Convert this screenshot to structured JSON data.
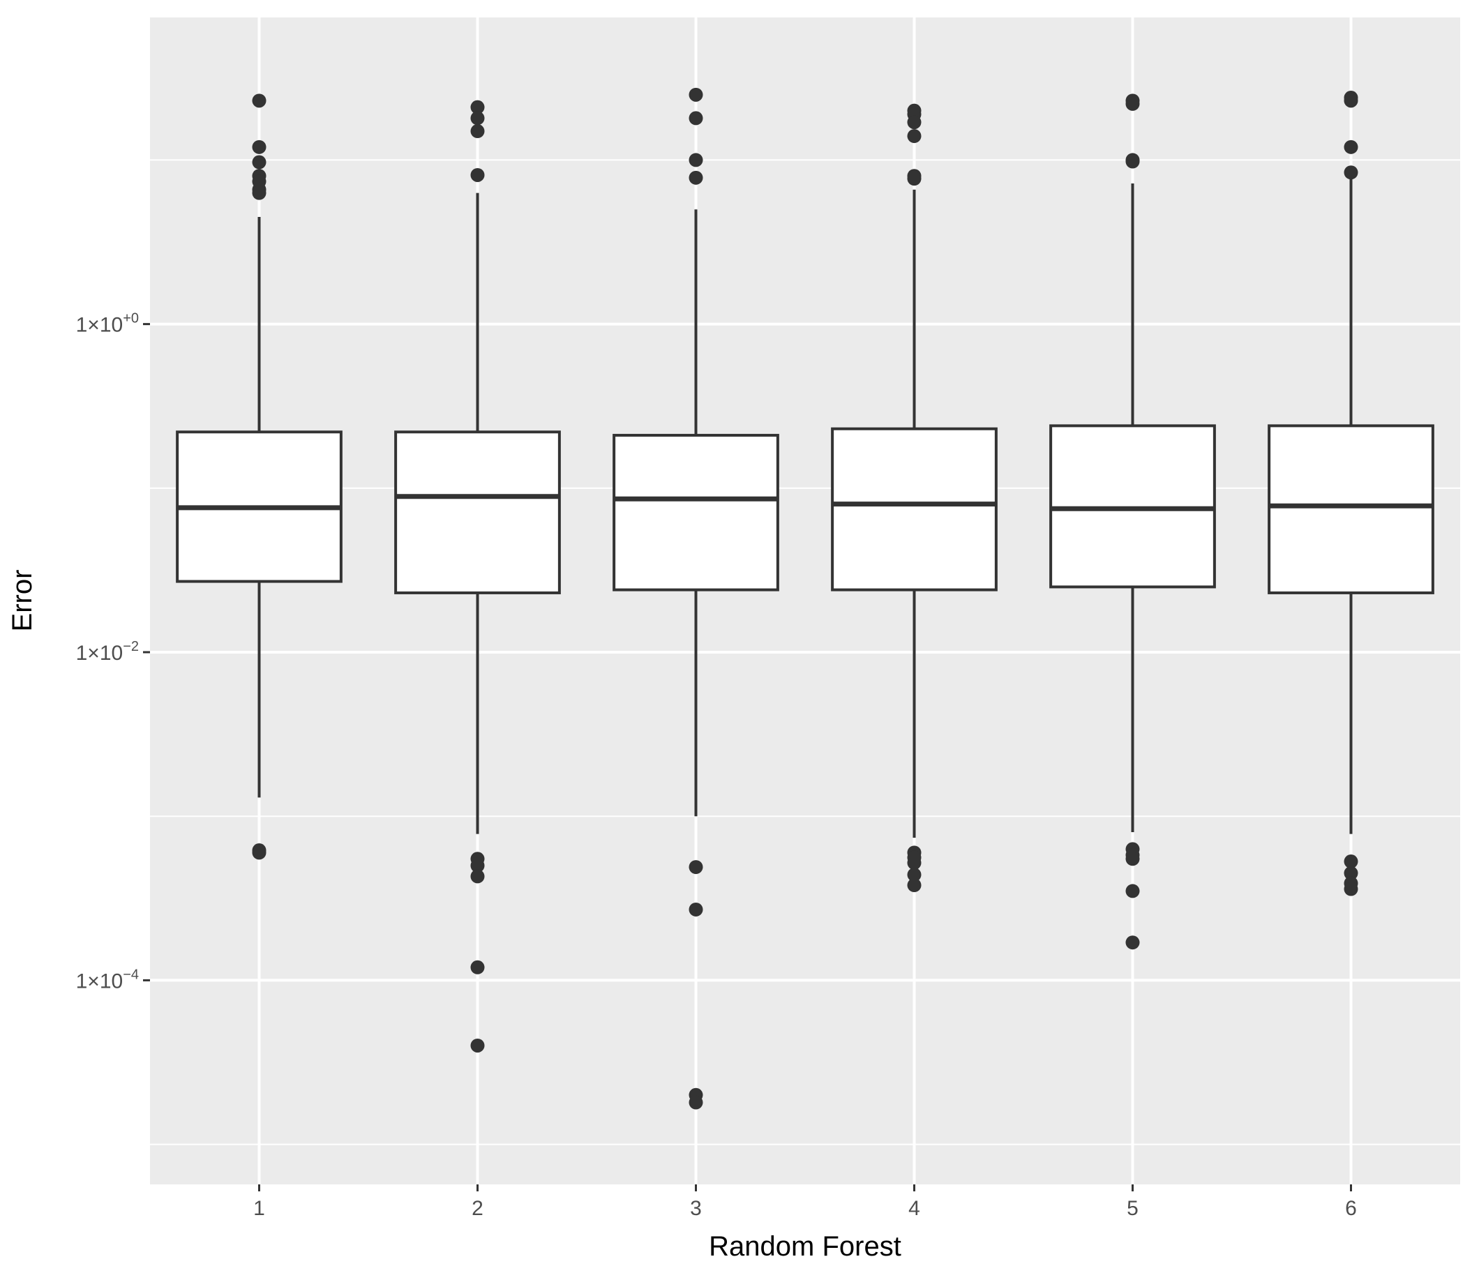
{
  "chart_data": {
    "type": "boxplot",
    "title": "",
    "xlabel": "Random Forest",
    "ylabel": "Error",
    "y_scale": "log10",
    "ylim": [
      5.7e-06,
      74
    ],
    "y_ticks": [
      {
        "value": 1,
        "mantissa": "1",
        "base": "10",
        "exponent": "+0"
      },
      {
        "value": 0.01,
        "mantissa": "1",
        "base": "10",
        "exponent": "−2"
      },
      {
        "value": 0.0001,
        "mantissa": "1",
        "base": "10",
        "exponent": "−4"
      }
    ],
    "y_minor_grid": [
      10,
      0.1,
      0.001,
      1e-05
    ],
    "grid": true,
    "legend": "none",
    "categories": [
      "1",
      "2",
      "3",
      "4",
      "5",
      "6"
    ],
    "boxes": [
      {
        "category": "1",
        "whisker_low": 0.0013,
        "q1": 0.027,
        "median": 0.076,
        "q3": 0.22,
        "whisker_high": 4.5,
        "outliers": [
          23,
          12,
          9.7,
          8.0,
          7.4,
          6.6,
          6.3,
          0.00062,
          0.0006
        ]
      },
      {
        "category": "2",
        "whisker_low": 0.00078,
        "q1": 0.023,
        "median": 0.089,
        "q3": 0.22,
        "whisker_high": 6.3,
        "outliers": [
          21,
          18,
          15,
          8.1,
          0.00055,
          0.0005,
          0.00043,
          0.00012,
          4e-05
        ]
      },
      {
        "category": "3",
        "whisker_low": 0.001,
        "q1": 0.024,
        "median": 0.086,
        "q3": 0.21,
        "whisker_high": 5.0,
        "outliers": [
          25,
          18,
          10,
          7.8,
          0.00049,
          0.00027,
          2e-05,
          1.8e-05
        ]
      },
      {
        "category": "4",
        "whisker_low": 0.00074,
        "q1": 0.024,
        "median": 0.08,
        "q3": 0.23,
        "whisker_high": 6.6,
        "outliers": [
          20,
          19,
          17,
          14,
          8.0,
          7.7,
          0.0006,
          0.00056,
          0.00052,
          0.00044,
          0.00038
        ]
      },
      {
        "category": "5",
        "whisker_low": 0.0008,
        "q1": 0.025,
        "median": 0.075,
        "q3": 0.24,
        "whisker_high": 7.2,
        "outliers": [
          23,
          22,
          10,
          9.8,
          0.00063,
          0.00058,
          0.00055,
          0.00035,
          0.00017
        ]
      },
      {
        "category": "6",
        "whisker_low": 0.00078,
        "q1": 0.023,
        "median": 0.078,
        "q3": 0.24,
        "whisker_high": 7.8,
        "outliers": [
          24,
          23,
          12,
          8.4,
          0.00053,
          0.00045,
          0.00039,
          0.00036
        ]
      }
    ],
    "colors": {
      "panel_background": "#ebebeb",
      "grid": "#ffffff",
      "box_fill": "#ffffff",
      "box_stroke": "#333333",
      "outlier": "#333333",
      "tick_mark": "#333333",
      "tick_label": "#4d4d4d",
      "axis_title": "#000000"
    }
  }
}
